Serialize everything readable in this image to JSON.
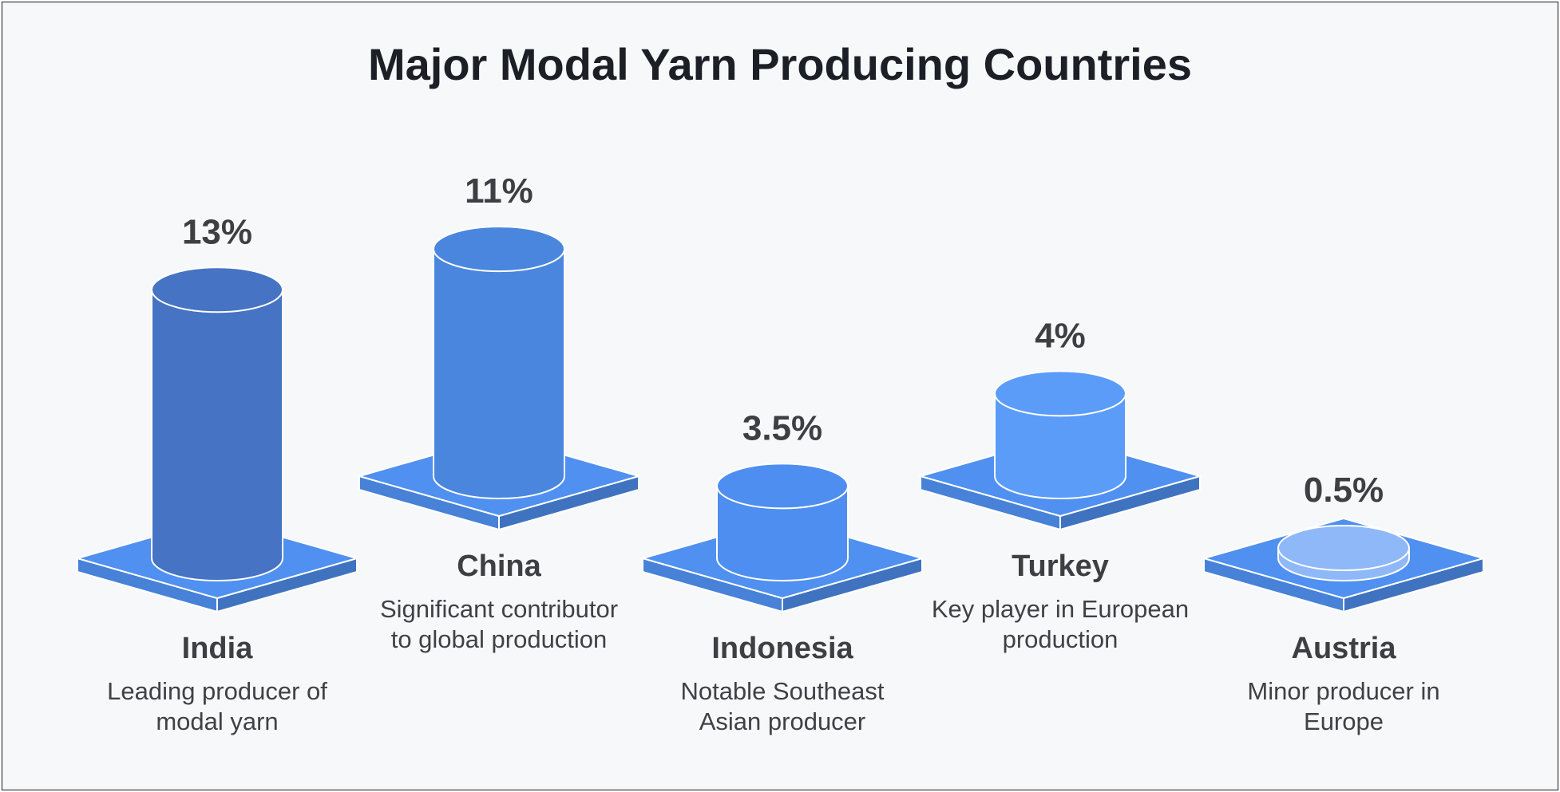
{
  "chart_data": {
    "type": "bar",
    "title": "Major Modal Yarn Producing Countries",
    "categories": [
      "India",
      "China",
      "Indonesia",
      "Turkey",
      "Austria"
    ],
    "values": [
      13,
      11,
      3.5,
      4,
      0.5
    ],
    "value_labels": [
      "13%",
      "11%",
      "3.5%",
      "4%",
      "0.5%"
    ],
    "descriptions": [
      [
        "Leading producer of",
        "modal yarn"
      ],
      [
        "Significant contributor",
        "to global production"
      ],
      [
        "Notable Southeast",
        "Asian producer"
      ],
      [
        "Key player in European",
        "production"
      ],
      [
        "Minor producer in",
        "Europe"
      ]
    ],
    "colors": [
      "#4673c3",
      "#4a86de",
      "#4e8ef0",
      "#5b9cf8",
      "#8fb8f8"
    ],
    "base_color": "#4f90f0",
    "grid": false,
    "legend": "none"
  }
}
